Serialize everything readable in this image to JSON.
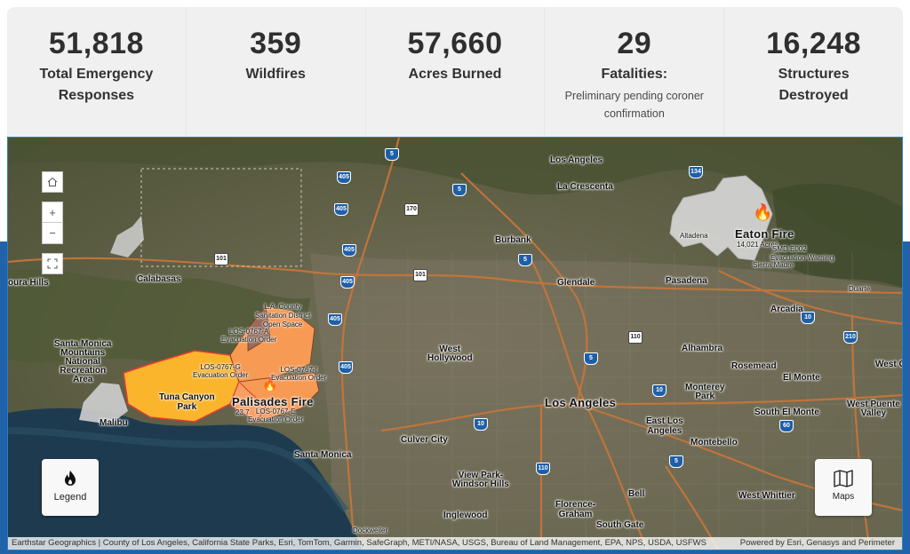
{
  "stats": [
    {
      "value": "51,818",
      "label": "Total Emergency Responses",
      "sub": ""
    },
    {
      "value": "359",
      "label": "Wildfires",
      "sub": ""
    },
    {
      "value": "57,660",
      "label": "Acres Burned",
      "sub": ""
    },
    {
      "value": "29",
      "label": "Fatalities:",
      "sub": "Preliminary pending coroner confirmation"
    },
    {
      "value": "16,248",
      "label": "Structures Destroyed",
      "sub": ""
    }
  ],
  "map": {
    "places": {
      "los_angeles_n": "Los Angeles",
      "la_crescenta": "La Crescenta",
      "burbank": "Burbank",
      "glendale": "Glendale",
      "pasadena": "Pasadena",
      "altadena": "Altadena",
      "sierra_madre": "Sierra Madre",
      "duarte": "Duarte",
      "arcadia": "Arcadia",
      "calabasas": "Calabasas",
      "agoura_hills": "oura Hills",
      "west_hollywood": "West\nHollywood",
      "alhambra": "Alhambra",
      "rosemead": "Rosemead",
      "el_monte": "El Monte",
      "west_c": "West C",
      "monterey_park": "Monterey\nPark",
      "south_el_monte": "South El Monte",
      "west_puente_valley": "West Puente\nValley",
      "los_angeles": "Los Angeles",
      "east_los_angeles": "East Los\nAngeles",
      "montebello": "Montebello",
      "culver_city": "Culver City",
      "santa_monica": "Santa Monica",
      "malibu": "Malibu",
      "smm_recreation": "Santa Monica\nMountains\nNational\nRecreation\nArea",
      "view_park": "View Park-\nWindsor Hills",
      "bell": "Bell",
      "florence_graham": "Florence-\nGraham",
      "west_whittier": "West Whittier",
      "inglewood": "Inglewood",
      "south_gate": "South Gate",
      "dockweiler": "Dockweiler",
      "tuna_canyon": "Tuna Canyon\nPark",
      "sanitation": "L.A. County\nSanitation District\nOpen Space"
    },
    "fires": {
      "palisades_name": "Palisades Fire",
      "palisades_acres": "23,7",
      "eaton_name": "Eaton Fire",
      "eaton_acres": "14,021 Acres",
      "eaton_zone": "SMD.E002",
      "eaton_zone_status": "Evacuation Warning"
    },
    "zones": [
      {
        "id": "LOS-0767-A",
        "status": "Evacuation Order"
      },
      {
        "id": "LOS-0767-G",
        "status": "Evacuation Order"
      },
      {
        "id": "LOS-0767-I",
        "status": "Evacuation Order"
      },
      {
        "id": "LOS-0767-E",
        "status": "Evacuation Order"
      }
    ],
    "shields": [
      "5",
      "5",
      "405",
      "405",
      "405",
      "405",
      "405",
      "405",
      "170",
      "101",
      "101",
      "5",
      "134",
      "110",
      "5",
      "10",
      "10",
      "10",
      "210",
      "60",
      "5",
      "110",
      "605"
    ],
    "buttons": {
      "legend": "Legend",
      "maps": "Maps"
    },
    "attribution_left": "Earthstar Geographics | County of Los Angeles, California State Parks, Esri, TomTom, Garmin, SafeGraph, METI/NASA, USGS, Bureau of Land Management, EPA, NPS, USDA, USFWS",
    "attribution_right": "Powered by Esri, Genasys and Perimeter",
    "colors": {
      "order": "#f9a15a",
      "warning": "#fbc02d",
      "palisades_perimeter": "#e53935",
      "eaton_perimeter": "#d4d4d4",
      "header_blue": "#2063a8"
    }
  }
}
